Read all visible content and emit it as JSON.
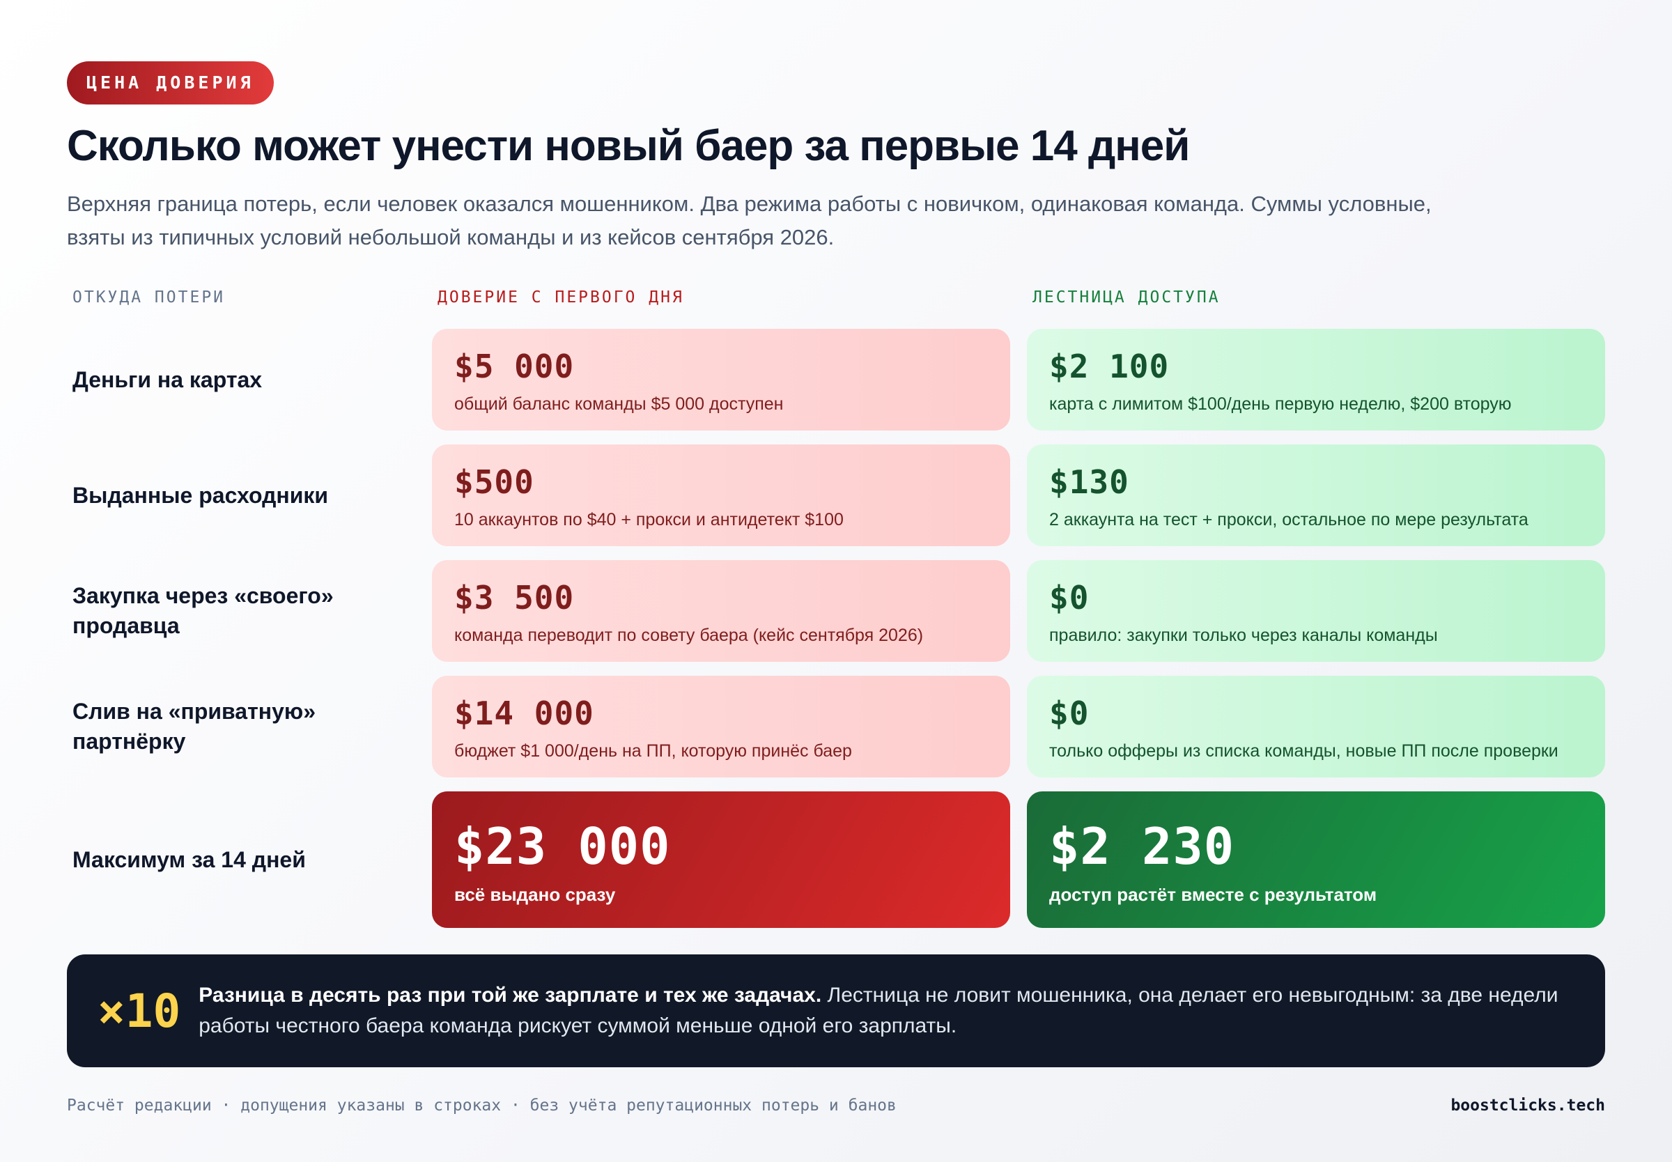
{
  "badge": "ЦЕНА ДОВЕРИЯ",
  "title": "Сколько может унести новый баер за первые 14 дней",
  "subtitle": "Верхняя граница потерь, если человек оказался мошенником. Два режима работы с новичком, одинаковая команда. Суммы условные, взяты из типичных условий небольшой команды и из кейсов сентября 2026.",
  "columns": {
    "source": "ОТКУДА ПОТЕРИ",
    "trust": "ДОВЕРИЕ С ПЕРВОГО ДНЯ",
    "ladder": "ЛЕСТНИЦА ДОСТУПА"
  },
  "rows": [
    {
      "label": "Деньги на картах",
      "trust": {
        "amount": "$5 000",
        "note": "общий баланс команды $5 000 доступен"
      },
      "ladder": {
        "amount": "$2 100",
        "note": "карта с лимитом $100/день первую неделю, $200 вторую"
      }
    },
    {
      "label": "Выданные расходники",
      "trust": {
        "amount": "$500",
        "note": "10 аккаунтов по $40 + прокси и антидетект $100"
      },
      "ladder": {
        "amount": "$130",
        "note": "2 аккаунта на тест + прокси, остальное по мере результата"
      }
    },
    {
      "label": "Закупка через «своего» продавца",
      "trust": {
        "amount": "$3 500",
        "note": "команда переводит по совету баера (кейс сентября 2026)"
      },
      "ladder": {
        "amount": "$0",
        "note": "правило: закупки только через каналы команды"
      }
    },
    {
      "label": "Слив на «приватную» партнёрку",
      "trust": {
        "amount": "$14 000",
        "note": "бюджет $1 000/день на ПП, которую принёс баер"
      },
      "ladder": {
        "amount": "$0",
        "note": "только офферы из списка команды, новые ПП после проверки"
      }
    }
  ],
  "total": {
    "label": "Максимум за 14 дней",
    "trust": {
      "amount": "$23 000",
      "note": "всё выдано сразу"
    },
    "ladder": {
      "amount": "$2 230",
      "note": "доступ растёт вместе с результатом"
    }
  },
  "callout": {
    "multiplier": "×10",
    "bold": "Разница в десять раз при той же зарплате и тех же задачах.",
    "text": " Лестница не ловит мошенника, она делает его невыгодным: за две недели работы честного баера команда рискует суммой меньше одной его зарплаты."
  },
  "footer": {
    "note": "Расчёт редакции · допущения указаны в строках · без учёта репутационных потерь и банов",
    "site": "boostclicks.tech"
  },
  "colors": {
    "trust_accent": "#b91c1c",
    "ladder_accent": "#15803d",
    "callout_bg": "#111827",
    "multiplier": "#fcd34d"
  }
}
